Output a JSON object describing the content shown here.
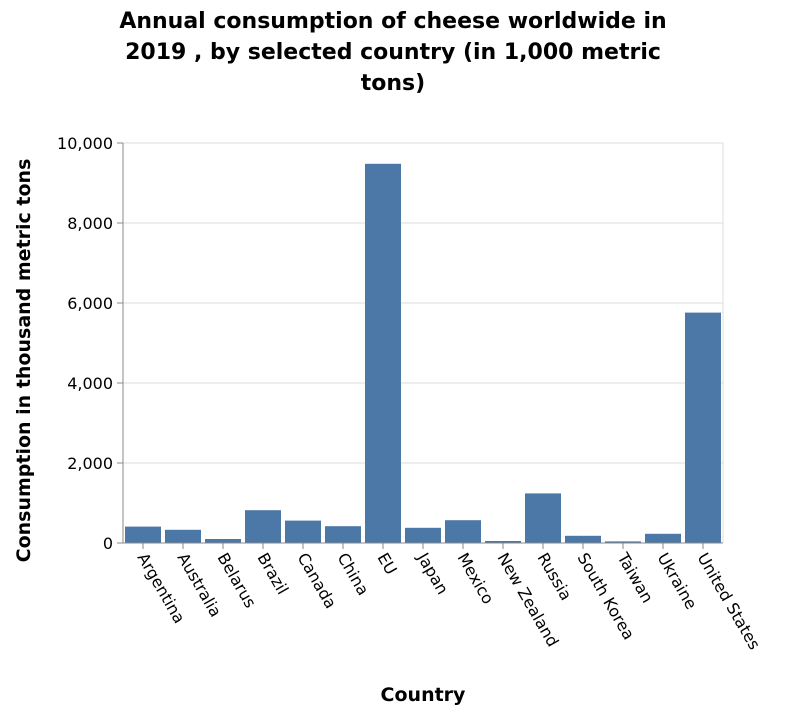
{
  "chart_data": {
    "type": "bar",
    "title_lines": [
      "Annual consumption of cheese worldwide in",
      "2019 , by selected country (in 1,000 metric",
      "tons)"
    ],
    "xlabel": "Country",
    "ylabel": "Consumption in thousand metric tons",
    "categories": [
      "Argentina",
      "Australia",
      "Belarus",
      "Brazil",
      "Canada",
      "China",
      "EU",
      "Japan",
      "Mexico",
      "New Zealand",
      "Russia",
      "South Korea",
      "Taiwan",
      "Ukraine",
      "United States"
    ],
    "values": [
      410,
      330,
      100,
      820,
      560,
      420,
      9480,
      380,
      570,
      50,
      1240,
      180,
      40,
      230,
      5760
    ],
    "ylim": [
      0,
      10000
    ],
    "yticks": [
      0,
      2000,
      4000,
      6000,
      8000,
      10000
    ],
    "ytick_labels": [
      "0",
      "2,000",
      "4,000",
      "6,000",
      "8,000",
      "10,000"
    ],
    "grid": true,
    "bar_color": "#4c78a8"
  }
}
